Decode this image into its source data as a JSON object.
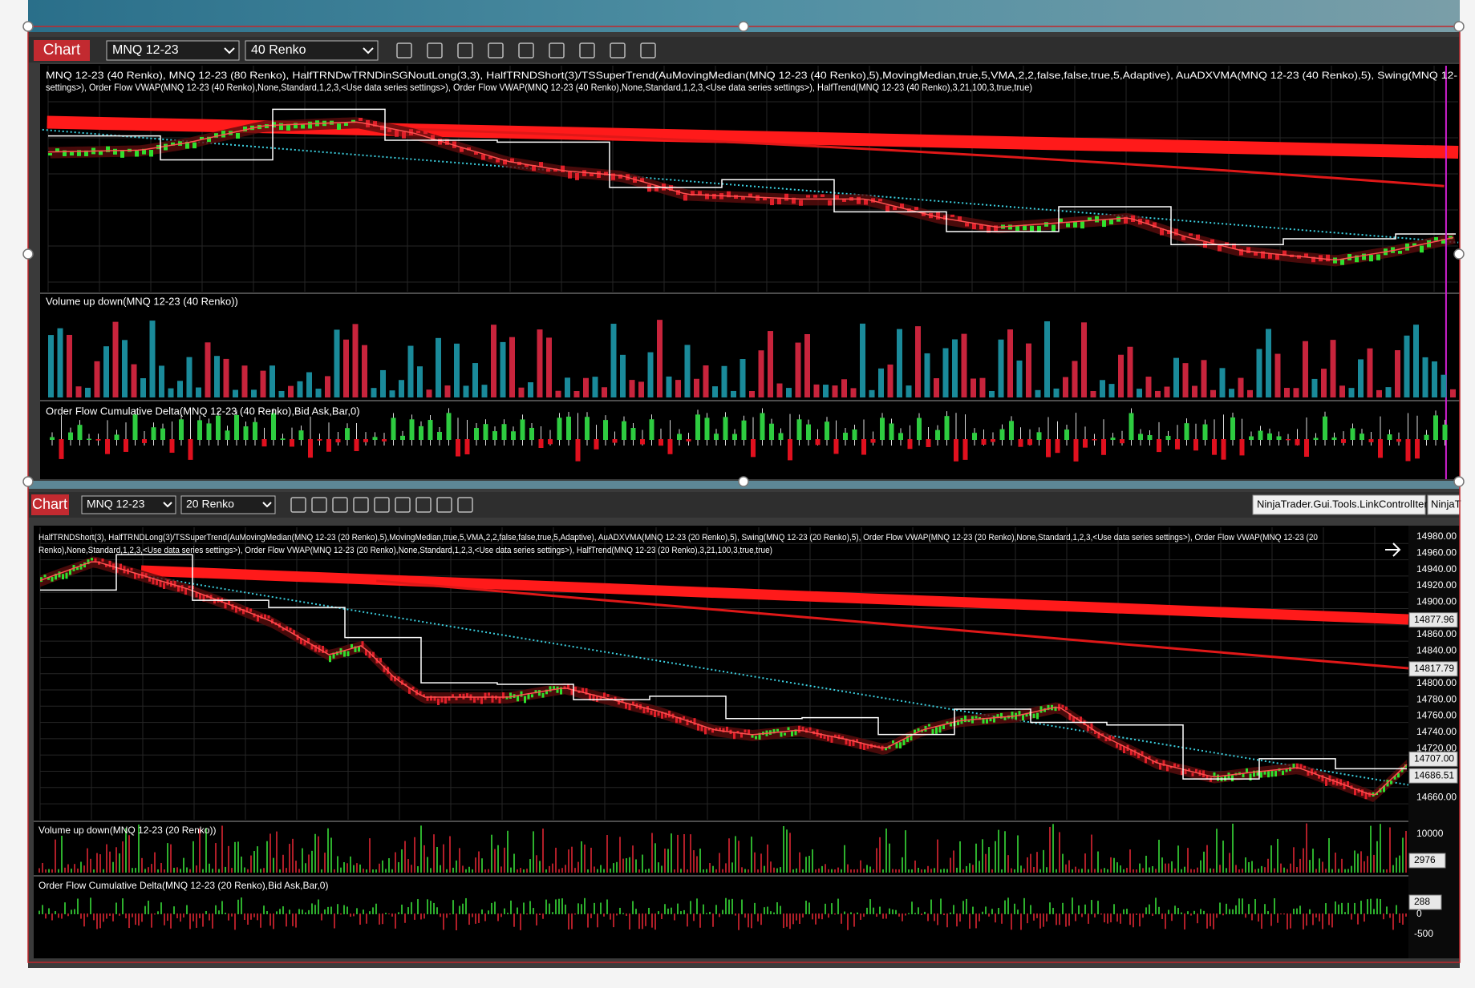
{
  "windows": [
    {
      "title": "Chart",
      "instrument": "MNQ 12-23",
      "period": "40 Renko",
      "indicators": [
        "MNQ 12-23 (40 Renko), MNQ 12-23 (80 Renko), HalfTRNDwTRNDinSGNoutLong(3,3), HalfTRNDShort(3)/TSSuperTrend(AuMovingMedian(MNQ 12-23 (40 Renko),5),MovingMedian,true,5,VMA,2,2,false,false,true,5,Adaptive), AuADXVMA(MNQ 12-23 (40 Renko),5), Swing(MNQ 12-",
        "settings>), Order Flow VWAP(MNQ 12-23 (40 Renko),None,Standard,1,2,3,<Use data series settings>), Order Flow VWAP(MNQ 12-23 (40 Renko),None,Standard,1,2,3,<Use data series settings>), HalfTrend(MNQ 12-23 (40 Renko),3,21,100,3,true,true)"
      ],
      "panels": [
        "Volume up down(MNQ 12-23 (40 Renko))",
        "Order Flow Cumulative Delta(MNQ 12-23 (40 Renko),Bid Ask,Bar,0)"
      ]
    },
    {
      "title": "Chart",
      "instrument": "MNQ 12-23",
      "period": "20 Renko",
      "link_control": "NinjaTrader.Gui.Tools.LinkControlItem",
      "link_control_2": "NinjaT",
      "indicators": [
        "HalfTRNDShort(3), HalfTRNDLong(3)/TSSuperTrend(AuMovingMedian(MNQ 12-23 (20 Renko),5),MovingMedian,true,5,VMA,2,2,false,false,true,5,Adaptive), AuADXVMA(MNQ 12-23 (20 Renko),5), Swing(MNQ 12-23 (20 Renko),5), Order Flow VWAP(MNQ 12-23 (20 Renko),None,Standard,1,2,3,<Use data series settings>), Order Flow VWAP(MNQ 12-23 (20",
        "Renko),None,Standard,1,2,3,<Use data series settings>), Order Flow VWAP(MNQ 12-23 (20 Renko),None,Standard,1,2,3,<Use data series settings>), HalfTrend(MNQ 12-23 (20 Renko),3,21,100,3,true,true)"
      ],
      "panels": [
        "Volume up down(MNQ 12-23 (20 Renko))",
        "Order Flow Cumulative Delta(MNQ 12-23 (20 Renko),Bid Ask,Bar,0)"
      ],
      "price_axis": [
        "14980.00",
        "14960.00",
        "14940.00",
        "14920.00",
        "14900.00",
        "14860.00",
        "14840.00",
        "14800.00",
        "14780.00",
        "14760.00",
        "14740.00",
        "14720.00",
        "14660.00"
      ],
      "price_markers": [
        "14877.96",
        "14817.79",
        "14707.00",
        "14686.51"
      ],
      "volume_axis": [
        "10000"
      ],
      "volume_marker": "2976",
      "delta_axis": [
        "0",
        "-500"
      ],
      "delta_marker": "288"
    }
  ]
}
